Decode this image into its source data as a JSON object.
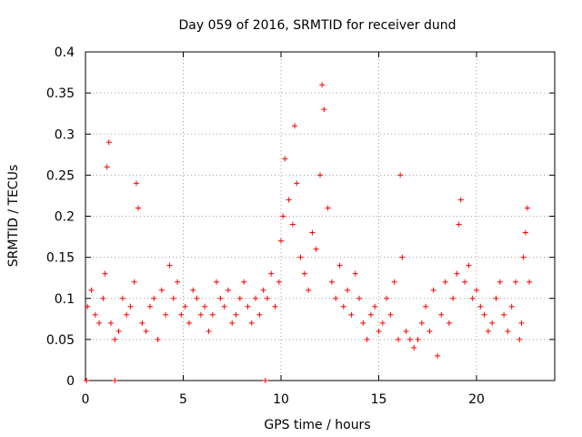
{
  "chart_data": {
    "type": "scatter",
    "title": "Day 059 of 2016, SRMTID for receiver dund",
    "xlabel": "GPS time / hours",
    "ylabel": "SRMTID / TECUs",
    "xlim": [
      0,
      24
    ],
    "ylim": [
      0,
      0.4
    ],
    "x_ticks": [
      "0",
      "5",
      "10",
      "15",
      "20"
    ],
    "x_tick_values": [
      0,
      5,
      10,
      15,
      20
    ],
    "y_ticks": [
      "0",
      "0.05",
      "0.1",
      "0.15",
      "0.2",
      "0.25",
      "0.3",
      "0.35",
      "0.4"
    ],
    "y_tick_values": [
      0,
      0.05,
      0.1,
      0.15,
      0.2,
      0.25,
      0.3,
      0.35,
      0.4
    ],
    "grid": true,
    "marker": "+",
    "marker_color": "#ff0000",
    "series": [
      {
        "name": "SRMTID",
        "x": [
          0.1,
          0.3,
          0.5,
          0.7,
          0.9,
          1.0,
          1.1,
          1.2,
          1.3,
          1.5,
          1.7,
          1.9,
          2.1,
          2.3,
          2.5,
          2.6,
          2.7,
          2.9,
          3.1,
          3.3,
          3.5,
          3.7,
          3.9,
          4.1,
          4.3,
          4.5,
          4.7,
          4.9,
          5.1,
          5.3,
          5.5,
          5.7,
          5.9,
          6.1,
          6.3,
          6.5,
          6.7,
          6.9,
          7.1,
          7.3,
          7.5,
          7.7,
          7.9,
          8.1,
          8.3,
          8.5,
          8.7,
          8.9,
          9.1,
          9.3,
          9.5,
          9.7,
          9.9,
          10.0,
          10.1,
          10.2,
          10.4,
          10.6,
          10.7,
          10.8,
          11.0,
          11.2,
          11.4,
          11.6,
          11.8,
          12.0,
          12.1,
          12.2,
          12.4,
          12.6,
          12.8,
          13.0,
          13.2,
          13.4,
          13.6,
          13.8,
          14.0,
          14.2,
          14.4,
          14.6,
          14.8,
          15.0,
          15.2,
          15.4,
          15.6,
          15.8,
          16.0,
          16.1,
          16.2,
          16.4,
          16.6,
          16.8,
          17.0,
          17.2,
          17.4,
          17.6,
          17.8,
          18.0,
          18.2,
          18.4,
          18.6,
          18.8,
          19.0,
          19.1,
          19.2,
          19.4,
          19.6,
          19.8,
          20.0,
          20.2,
          20.4,
          20.6,
          20.8,
          21.0,
          21.2,
          21.4,
          21.6,
          21.8,
          22.0,
          22.2,
          22.3,
          22.4,
          22.5,
          22.6,
          22.7,
          0.05,
          1.5,
          9.2
        ],
        "y": [
          0.09,
          0.11,
          0.08,
          0.07,
          0.1,
          0.13,
          0.26,
          0.29,
          0.07,
          0.05,
          0.06,
          0.1,
          0.08,
          0.09,
          0.12,
          0.24,
          0.21,
          0.07,
          0.06,
          0.09,
          0.1,
          0.05,
          0.11,
          0.08,
          0.14,
          0.1,
          0.12,
          0.08,
          0.09,
          0.07,
          0.11,
          0.1,
          0.08,
          0.09,
          0.06,
          0.08,
          0.12,
          0.1,
          0.09,
          0.11,
          0.07,
          0.08,
          0.1,
          0.12,
          0.09,
          0.07,
          0.1,
          0.08,
          0.11,
          0.1,
          0.13,
          0.09,
          0.12,
          0.17,
          0.2,
          0.27,
          0.22,
          0.19,
          0.31,
          0.24,
          0.15,
          0.13,
          0.11,
          0.18,
          0.16,
          0.25,
          0.36,
          0.33,
          0.21,
          0.12,
          0.1,
          0.14,
          0.09,
          0.11,
          0.08,
          0.13,
          0.1,
          0.07,
          0.05,
          0.08,
          0.09,
          0.06,
          0.07,
          0.1,
          0.08,
          0.12,
          0.05,
          0.25,
          0.15,
          0.06,
          0.05,
          0.04,
          0.05,
          0.07,
          0.09,
          0.06,
          0.11,
          0.03,
          0.08,
          0.12,
          0.07,
          0.1,
          0.13,
          0.19,
          0.22,
          0.12,
          0.14,
          0.1,
          0.11,
          0.09,
          0.08,
          0.06,
          0.07,
          0.1,
          0.12,
          0.08,
          0.06,
          0.09,
          0.12,
          0.05,
          0.07,
          0.15,
          0.18,
          0.21,
          0.12,
          0.0,
          0.0,
          0.0
        ]
      }
    ]
  }
}
